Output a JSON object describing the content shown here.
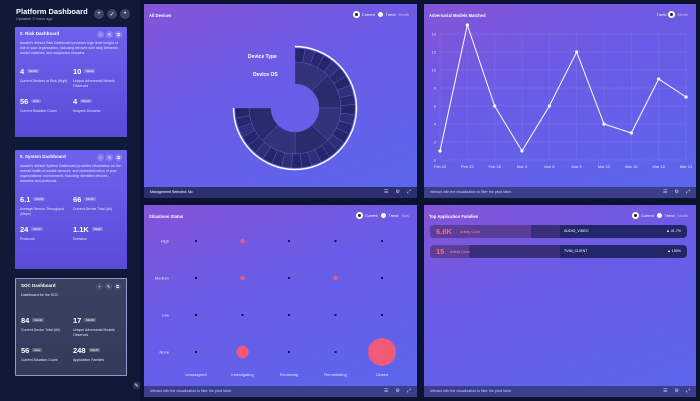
{
  "sidebar": {
    "title": "Platform Dashboard",
    "updated": "Updated: 2 hours ago",
    "header_buttons": [
      "+",
      "✓",
      "•"
    ],
    "dashboards": [
      {
        "title": "0. Risk Dashboard",
        "description": "Awake's default Risk Dashboard provides high level insight of risk in your organization, including devices with risky behavior, model matches, and suspected domains.",
        "stats": [
          {
            "value": "4",
            "unit": "Month",
            "label": "Current Devices at Risk (High)"
          },
          {
            "value": "10",
            "unit": "Week",
            "label": "Unique Adversarial Models Observed"
          },
          {
            "value": "56",
            "unit": "Now",
            "label": "Current Situation Count"
          },
          {
            "value": "4",
            "unit": "Month",
            "label": "Suspect Domains"
          }
        ]
      },
      {
        "title": "0. System Dashboard",
        "description": "Awake's default System Dashboard provides information on the overall health of awake sensors, and characterization of your organizations' environment, including identified devices, domains and protocols.",
        "stats": [
          {
            "value": "6.1",
            "unit": "Month",
            "label": "Average Sensor Throughput (Mbps)"
          },
          {
            "value": "66",
            "unit": "Month",
            "label": "Current Device Total (All)"
          },
          {
            "value": "24",
            "unit": "Month",
            "label": "Protocols"
          },
          {
            "value": "1.1K",
            "unit": "Week",
            "label": "Domains"
          }
        ]
      },
      {
        "title": "SOC Dashboard",
        "description": "Dashboard for the SOC",
        "stats": [
          {
            "value": "84",
            "unit": "Month",
            "label": "Current Device Total (All)"
          },
          {
            "value": "17",
            "unit": "Month",
            "label": "Unique Adversarial Models Observed"
          },
          {
            "value": "56",
            "unit": "Now",
            "label": "Current Situation Count"
          },
          {
            "value": "248",
            "unit": "Month",
            "label": "Application Families"
          }
        ]
      }
    ]
  },
  "panels": {
    "all_devices": {
      "title": "All Devices",
      "opt_current": "Current",
      "opt_trend": "Trend",
      "opt_extra": "Month",
      "label_type": "Device Type",
      "label_os": "Device OS",
      "footer": "Management Selected: No"
    },
    "adversarial": {
      "title": "Adversarial Models Matched",
      "opt_trend": "Trend",
      "opt_extra": "Month",
      "footer": "Interact with the visualization to filter the pivot table."
    },
    "situations": {
      "title": "Situations Status",
      "opt_current": "Current",
      "opt_trend": "Trend",
      "opt_extra": "Now",
      "footer": "Interact with the visualization to filter the pivot table."
    },
    "app_families": {
      "title": "Top Application Families",
      "opt_current": "Current",
      "opt_trend": "Trend",
      "opt_extra": "Month",
      "footer": "Interact with the visualization to filter the pivot table.",
      "rows": [
        {
          "value": "6.6K",
          "label": "Activity Count",
          "name": "AUDIO_VIDEO",
          "pct": "▲ 41.7%",
          "fill": 0.78
        },
        {
          "value": "15",
          "label": "Activity Count",
          "name": "TVIM_CLIENT",
          "pct": "▲ 150%",
          "fill": 0.3
        }
      ]
    }
  },
  "footer_icons": [
    "list-icon",
    "gear-icon",
    "expand-icon"
  ],
  "chart_data": [
    {
      "type": "line",
      "title": "Adversarial Models Matched",
      "x": [
        "Feb 22",
        "Feb 25",
        "Feb 28",
        "Mar 3",
        "Mar 6",
        "Mar 9",
        "Mar 12",
        "Mar 15",
        "Mar 18",
        "Mar 21"
      ],
      "series": [
        {
          "values": [
            1,
            15,
            6,
            1,
            6,
            12,
            4,
            3,
            9,
            7
          ]
        }
      ],
      "ylim": [
        0,
        14
      ],
      "yticks": [
        0,
        2,
        4,
        6,
        8,
        10,
        12,
        14
      ],
      "grid": true
    },
    {
      "type": "scatter",
      "title": "Situations Status",
      "x_categories": [
        "Unassigned",
        "Investigating",
        "Reviewing",
        "Remediating",
        "Closed"
      ],
      "y_categories": [
        "High",
        "Medium",
        "Low",
        "None"
      ],
      "points": [
        {
          "x": "Unassigned",
          "y": "High",
          "size": 0
        },
        {
          "x": "Investigating",
          "y": "High",
          "size": 1
        },
        {
          "x": "Reviewing",
          "y": "High",
          "size": 0
        },
        {
          "x": "Remediating",
          "y": "High",
          "size": 0
        },
        {
          "x": "Closed",
          "y": "High",
          "size": 0
        },
        {
          "x": "Unassigned",
          "y": "Medium",
          "size": 0
        },
        {
          "x": "Investigating",
          "y": "Medium",
          "size": 1
        },
        {
          "x": "Reviewing",
          "y": "Medium",
          "size": 0
        },
        {
          "x": "Remediating",
          "y": "Medium",
          "size": 1
        },
        {
          "x": "Closed",
          "y": "Medium",
          "size": 0
        },
        {
          "x": "Unassigned",
          "y": "Low",
          "size": 0
        },
        {
          "x": "Investigating",
          "y": "Low",
          "size": 0
        },
        {
          "x": "Reviewing",
          "y": "Low",
          "size": 0
        },
        {
          "x": "Remediating",
          "y": "Low",
          "size": 0
        },
        {
          "x": "Closed",
          "y": "Low",
          "size": 0
        },
        {
          "x": "Unassigned",
          "y": "None",
          "size": 0
        },
        {
          "x": "Investigating",
          "y": "None",
          "size": 8
        },
        {
          "x": "Reviewing",
          "y": "None",
          "size": 0
        },
        {
          "x": "Remediating",
          "y": "None",
          "size": 0
        },
        {
          "x": "Closed",
          "y": "None",
          "size": 40
        }
      ],
      "color": "#f05a78"
    },
    {
      "type": "pie",
      "title": "All Devices",
      "rings": [
        "Device Type",
        "Device OS"
      ],
      "shown_fraction": 0.75
    }
  ]
}
